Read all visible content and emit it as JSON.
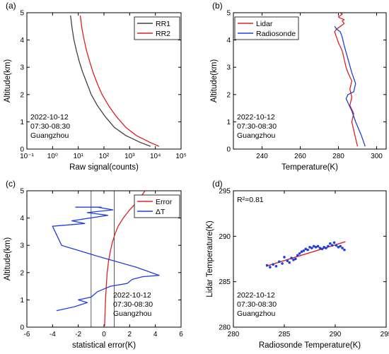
{
  "chart_data": [
    {
      "panel": "(a)",
      "type": "line",
      "xscale": "log",
      "xlim": [
        0.1,
        100000
      ],
      "ylim": [
        0,
        5
      ],
      "xticks": [
        0.1,
        1,
        10,
        100,
        1000,
        10000,
        100000
      ],
      "xtick_labels": [
        "10⁻¹",
        "10⁰",
        "10¹",
        "10²",
        "10³",
        "10⁴",
        "10⁵"
      ],
      "yticks": [
        0,
        1,
        2,
        3,
        4,
        5
      ],
      "ytick_labels": [
        "0",
        "1",
        "2",
        "3",
        "4",
        "5"
      ],
      "xlabel": "Raw signal(counts)",
      "ylabel": "Altitude(km)",
      "legend_position": "top-right",
      "annotation": [
        "2022-10-12",
        "07:30-08:30",
        "Guangzhou"
      ],
      "series": [
        {
          "name": "RR1",
          "color": "#404040",
          "x": [
            6500,
            2500,
            700,
            250,
            110,
            55,
            32,
            22,
            15,
            11,
            8.5,
            6.8,
            5.8,
            5
          ],
          "y": [
            0.1,
            0.25,
            0.5,
            0.8,
            1.2,
            1.6,
            2.0,
            2.4,
            2.8,
            3.2,
            3.6,
            4.0,
            4.4,
            4.9
          ]
        },
        {
          "name": "RR2",
          "color": "#e02020",
          "x": [
            14000,
            6000,
            1800,
            700,
            300,
            150,
            85,
            55,
            38,
            28,
            21,
            17,
            14,
            12
          ],
          "y": [
            0.1,
            0.25,
            0.5,
            0.8,
            1.2,
            1.6,
            2.0,
            2.4,
            2.8,
            3.2,
            3.6,
            4.0,
            4.4,
            4.9
          ]
        }
      ]
    },
    {
      "panel": "(b)",
      "type": "line",
      "xlim": [
        225,
        305
      ],
      "ylim": [
        0,
        5
      ],
      "xticks": [
        240,
        260,
        280,
        300
      ],
      "yticks": [
        0,
        1,
        2,
        3,
        4,
        5
      ],
      "xlabel": "Temperature(K)",
      "ylabel": "Altitude(km)",
      "legend_position": "top-left",
      "annotation": [
        "2022-10-12",
        "07:30-08:30",
        "Guangzhou"
      ],
      "series": [
        {
          "name": "Lidar",
          "color": "#e02020",
          "x": [
            290,
            289,
            288,
            287,
            288,
            286,
            287,
            286,
            287,
            285,
            284,
            283,
            282,
            280,
            279,
            278,
            279,
            281,
            283,
            282,
            283,
            281,
            280,
            281,
            282,
            281
          ],
          "y": [
            0.1,
            0.4,
            0.7,
            1.0,
            1.3,
            1.6,
            1.9,
            2.2,
            2.5,
            2.8,
            3.0,
            3.3,
            3.6,
            3.9,
            4.1,
            4.3,
            4.4,
            4.5,
            4.6,
            4.7,
            4.75,
            4.8,
            4.85,
            4.9,
            4.95,
            5.0
          ]
        },
        {
          "name": "Radiosonde",
          "color": "#1f3fe0",
          "x": [
            294,
            292,
            289,
            287,
            285,
            284,
            285,
            288,
            289,
            287,
            285,
            283,
            282,
            281,
            279,
            278
          ],
          "y": [
            0.1,
            0.5,
            1.0,
            1.4,
            1.7,
            1.85,
            2.0,
            2.1,
            2.4,
            2.8,
            3.3,
            3.8,
            4.1,
            4.3,
            4.4,
            4.5
          ]
        }
      ]
    },
    {
      "panel": "(c)",
      "type": "line",
      "xlim": [
        -6,
        6
      ],
      "ylim": [
        0,
        5
      ],
      "xticks": [
        -6,
        -4,
        -2,
        0,
        2,
        4,
        6
      ],
      "yticks": [
        0,
        1,
        2,
        3,
        4,
        5
      ],
      "xlabel": "statistical error(K)",
      "ylabel": "Altitude(km)",
      "legend_position": "top-right",
      "vlines": [
        -1,
        0.8
      ],
      "annotation": [
        "2022-10-12",
        "07:30-08:30",
        "Guangzhou"
      ],
      "series": [
        {
          "name": "Error",
          "color": "#e02020",
          "x": [
            0.05,
            0.08,
            0.12,
            0.18,
            0.25,
            0.35,
            0.5,
            0.65,
            0.85,
            1.1,
            1.5,
            2.0,
            2.6,
            3.2
          ],
          "y": [
            0.05,
            0.5,
            1.0,
            1.5,
            2.0,
            2.4,
            2.8,
            3.1,
            3.4,
            3.7,
            4.0,
            4.3,
            4.6,
            5.0
          ]
        },
        {
          "name": "ΔT",
          "color": "#1f3fe0",
          "x": [
            -3.7,
            -2.3,
            -1.3,
            -2.0,
            -1.0,
            -0.5,
            0.5,
            1.8,
            2.2,
            3.0,
            4.3,
            2.5,
            -0.5,
            -3.3,
            -4.0,
            -1.5,
            -2.5,
            0.3,
            -1.3,
            0.7,
            -0.5,
            -2.2,
            -0.2
          ],
          "y": [
            0.6,
            0.75,
            0.9,
            1.0,
            1.1,
            1.3,
            1.5,
            1.6,
            1.75,
            1.85,
            1.9,
            2.2,
            2.6,
            3.0,
            3.7,
            3.8,
            3.9,
            4.1,
            4.2,
            4.3,
            4.4,
            4.4,
            4.4
          ]
        }
      ]
    },
    {
      "panel": "(d)",
      "type": "scatter",
      "xlim": [
        280,
        295
      ],
      "ylim": [
        280,
        295
      ],
      "xticks": [
        280,
        285,
        290,
        295
      ],
      "yticks": [
        280,
        285,
        290,
        295
      ],
      "xlabel": "Radiosonde Temperature(K)",
      "ylabel": "Lidar Temperature(K)",
      "annotation_r2": "R²=0.81",
      "annotation": [
        "2022-10-12",
        "07:30-08:30",
        "Guangzhou"
      ],
      "fit_line": {
        "color": "#e02020",
        "x": [
          283.2,
          291
        ],
        "y": [
          286.7,
          289.4
        ]
      },
      "series": [
        {
          "color": "#1f3fe0",
          "x": [
            283.3,
            283.6,
            283.9,
            284.2,
            284.5,
            284.8,
            285.0,
            285.3,
            285.5,
            285.7,
            285.9,
            286.1,
            286.3,
            286.5,
            286.7,
            286.9,
            287.1,
            287.3,
            287.5,
            287.7,
            287.9,
            288.1,
            288.3,
            288.5,
            288.7,
            288.9,
            289.1,
            289.3,
            289.5,
            289.7,
            289.9,
            290.1,
            290.3,
            290.5,
            290.7,
            290.9
          ],
          "y": [
            286.8,
            286.6,
            286.9,
            286.7,
            287.2,
            287.0,
            287.7,
            287.3,
            287.1,
            287.6,
            287.4,
            287.5,
            287.9,
            288.1,
            288.3,
            288.4,
            288.6,
            288.5,
            288.8,
            288.7,
            288.9,
            288.8,
            288.9,
            288.7,
            288.6,
            288.8,
            288.7,
            288.9,
            289.2,
            289.0,
            289.3,
            289.0,
            288.8,
            288.9,
            288.7,
            288.5
          ]
        }
      ]
    }
  ],
  "panels": [
    {
      "label": "(a)"
    },
    {
      "label": "(b)"
    },
    {
      "label": "(c)"
    },
    {
      "label": "(d)"
    }
  ]
}
